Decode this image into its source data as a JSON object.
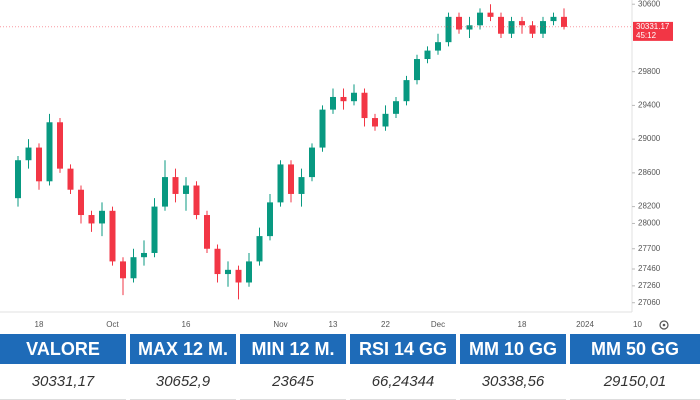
{
  "chart_data": {
    "type": "candlestick",
    "categories": [
      null,
      null,
      "18",
      null,
      null,
      null,
      null,
      null,
      null,
      "Oct",
      null,
      null,
      null,
      null,
      null,
      null,
      "16",
      null,
      null,
      null,
      null,
      null,
      null,
      null,
      null,
      "Nov",
      null,
      null,
      null,
      null,
      "13",
      null,
      null,
      null,
      null,
      "22",
      null,
      null,
      null,
      null,
      "Dec",
      null,
      null,
      null,
      null,
      null,
      null,
      null,
      "18",
      null,
      null,
      null,
      null,
      null,
      "2024",
      null,
      null,
      null,
      null,
      "10"
    ],
    "open": [
      28300,
      28750,
      28900,
      28500,
      29200,
      28650,
      28400,
      28100,
      28000,
      28150,
      27550,
      27350,
      27600,
      27650,
      28200,
      28550,
      28350,
      28450,
      28100,
      27700,
      27400,
      27450,
      27300,
      27550,
      27850,
      28250,
      28700,
      28350,
      28550,
      28900,
      29350,
      29500,
      29450,
      29550,
      29250,
      29150,
      29300,
      29450,
      29700,
      29950,
      30050,
      30150,
      30450,
      30300,
      30350,
      30500,
      30450,
      30250,
      30400,
      30350,
      30250,
      30400,
      30450,
      null,
      null,
      null,
      null,
      null,
      null,
      null
    ],
    "high": [
      28800,
      29000,
      28950,
      29300,
      29250,
      28700,
      28450,
      28150,
      28250,
      28200,
      27600,
      27700,
      27800,
      28300,
      28750,
      28650,
      28550,
      28500,
      28150,
      27750,
      27550,
      27500,
      27650,
      27950,
      28350,
      28750,
      28750,
      28650,
      28950,
      29400,
      29600,
      29600,
      29650,
      29600,
      29300,
      29400,
      29500,
      29750,
      30000,
      30100,
      30250,
      30500,
      30500,
      30450,
      30550,
      30600,
      30500,
      30450,
      30450,
      30400,
      30450,
      30500,
      30550,
      null,
      null,
      null,
      null,
      null,
      null,
      null
    ],
    "low": [
      28200,
      28650,
      28400,
      28450,
      28600,
      28350,
      28000,
      27900,
      27850,
      27500,
      27150,
      27300,
      27500,
      27600,
      28150,
      28250,
      28150,
      28050,
      27650,
      27300,
      27250,
      27100,
      27250,
      27500,
      27800,
      28200,
      28250,
      28200,
      28500,
      28850,
      29300,
      29350,
      29400,
      29150,
      29100,
      29100,
      29250,
      29400,
      29650,
      29900,
      30000,
      30100,
      30250,
      30200,
      30300,
      30400,
      30200,
      30200,
      30250,
      30200,
      30200,
      30350,
      30300,
      null,
      null,
      null,
      null,
      null,
      null,
      null
    ],
    "close": [
      28750,
      28900,
      28500,
      29200,
      28650,
      28400,
      28100,
      28000,
      28150,
      27550,
      27350,
      27600,
      27650,
      28200,
      28550,
      28350,
      28450,
      28100,
      27700,
      27400,
      27450,
      27300,
      27550,
      27850,
      28250,
      28700,
      28350,
      28550,
      28900,
      29350,
      29500,
      29450,
      29550,
      29250,
      29150,
      29300,
      29450,
      29700,
      29950,
      30050,
      30150,
      30450,
      30300,
      30350,
      30500,
      30450,
      30250,
      30400,
      30350,
      30250,
      30400,
      30450,
      30331.17,
      null,
      null,
      null,
      null,
      null,
      null,
      null
    ],
    "up_color": "#089981",
    "down_color": "#f23645",
    "ylim": [
      26950,
      30650
    ],
    "yticks": [
      27060,
      27260,
      27460,
      27700,
      28000,
      28200,
      28600,
      29000,
      29400,
      29800,
      30600
    ],
    "grid": false,
    "price_tag": 30331.17,
    "countdown": "45:12"
  },
  "table": {
    "headers": [
      "VALORE",
      "MAX 12 M.",
      "MIN 12 M.",
      "RSI 14 GG",
      "MM 10 GG",
      "MM 50 GG"
    ],
    "rows": [
      [
        "30331,17",
        "30652,9",
        "23645",
        "66,24344",
        "30338,56",
        "29150,01"
      ]
    ]
  }
}
